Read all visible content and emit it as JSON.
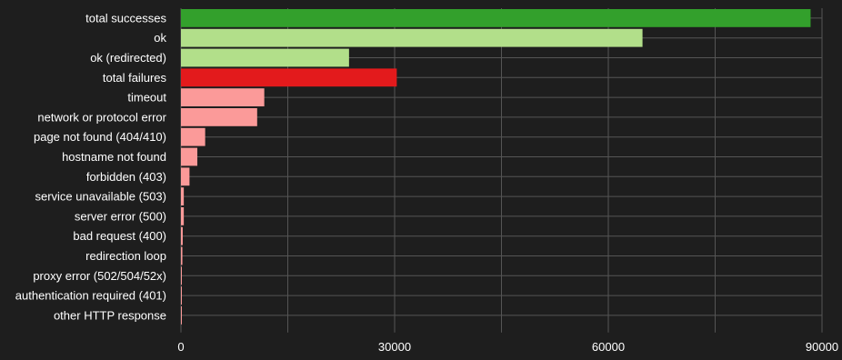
{
  "chart_data": {
    "type": "bar",
    "orientation": "horizontal",
    "categories": [
      "total successes",
      "ok",
      "ok (redirected)",
      "total failures",
      "timeout",
      "network or protocol error",
      "page not found (404/410)",
      "hostname not found",
      "forbidden (403)",
      "service unavailable (503)",
      "server error (500)",
      "bad request (400)",
      "redirection loop",
      "proxy error (502/504/52x)",
      "authentication required (401)",
      "other HTTP response"
    ],
    "values": [
      88400,
      64800,
      23600,
      30300,
      11700,
      10700,
      3400,
      2300,
      1200,
      400,
      400,
      250,
      200,
      100,
      50,
      30
    ],
    "colors": [
      "#33a02c",
      "#b2df8a",
      "#b2df8a",
      "#e31a1c",
      "#fb9a99",
      "#fb9a99",
      "#fb9a99",
      "#fb9a99",
      "#fb9a99",
      "#fb9a99",
      "#fb9a99",
      "#fb9a99",
      "#fb9a99",
      "#fb9a99",
      "#fb9a99",
      "#fb9a99"
    ],
    "xlim": [
      0,
      90000
    ],
    "xticks": [
      0,
      30000,
      60000,
      90000
    ],
    "xtick_labels": [
      "0",
      "30000",
      "60000",
      "90000"
    ],
    "grid": true,
    "title": "",
    "xlabel": "",
    "ylabel": ""
  },
  "theme": {
    "background": "#1e1e1e",
    "grid_color": "#555555",
    "text_color": "#ffffff"
  }
}
